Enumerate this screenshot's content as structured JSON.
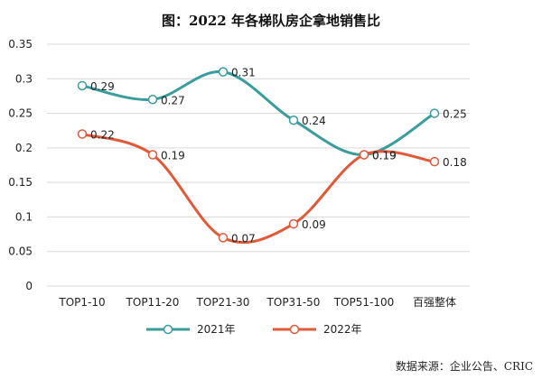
{
  "chart_data": {
    "type": "line",
    "title": "图：2022 年各梯队房企拿地销售比",
    "categories": [
      "TOP1-10",
      "TOP11-20",
      "TOP21-30",
      "TOP31-50",
      "TOP51-100",
      "百强整体"
    ],
    "ylim": [
      0,
      0.35
    ],
    "yticks": [
      "0",
      "0.05",
      "0.1",
      "0.15",
      "0.2",
      "0.25",
      "0.3",
      "0.35"
    ],
    "grid": true,
    "legend_position": "bottom",
    "series": [
      {
        "name": "2021年",
        "color": "#3a9c9c",
        "values": [
          0.29,
          0.27,
          0.31,
          0.24,
          0.19,
          0.25
        ],
        "labels": [
          "0.29",
          "0.27",
          "0.31",
          "0.24",
          "0.19",
          "0.25"
        ]
      },
      {
        "name": "2022年",
        "color": "#e05a3a",
        "values": [
          0.22,
          0.19,
          0.07,
          0.09,
          0.19,
          0.18
        ],
        "labels": [
          "0.22",
          "0.19",
          "0.07",
          "0.09",
          "0.19",
          "0.18"
        ]
      }
    ],
    "source": "数据来源：企业公告、CRIC"
  }
}
